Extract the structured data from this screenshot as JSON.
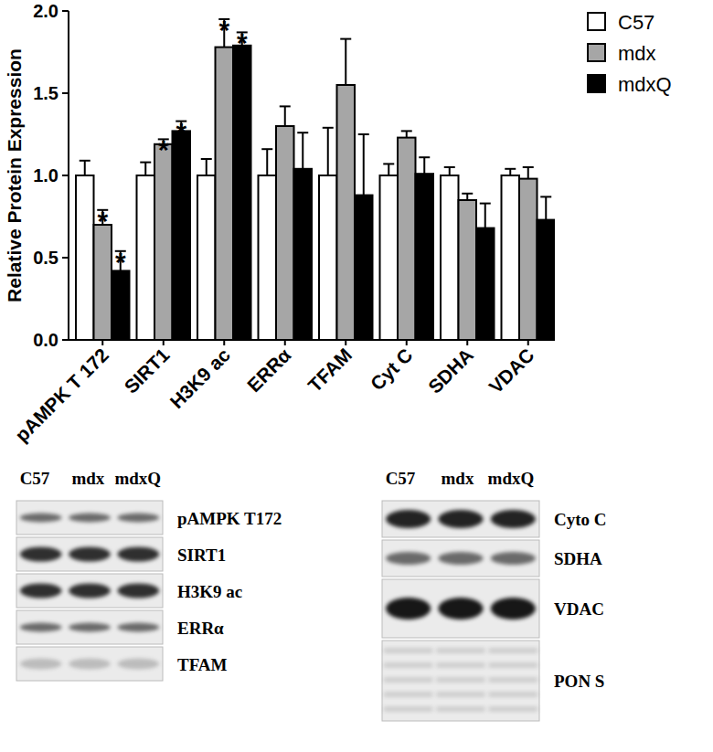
{
  "chart_data": {
    "type": "bar",
    "y_label": "Relative Protein Expression",
    "categories": [
      "pAMPK T 172",
      "SIRT1",
      "H3K9 ac",
      "ERRα",
      "TFAM",
      "Cyt C",
      "SDHA",
      "VDAC"
    ],
    "series": [
      {
        "name": "C57",
        "color": "#ffffff",
        "values": [
          1.0,
          1.0,
          1.0,
          1.0,
          1.0,
          1.0,
          1.0,
          1.0
        ],
        "errors": [
          0.09,
          0.08,
          0.1,
          0.16,
          0.29,
          0.07,
          0.05,
          0.04
        ],
        "significance": [
          null,
          null,
          null,
          null,
          null,
          null,
          null,
          null
        ]
      },
      {
        "name": "mdx",
        "color": "#a6a6a6",
        "values": [
          0.7,
          1.19,
          1.78,
          1.3,
          1.55,
          1.23,
          0.85,
          0.98
        ],
        "errors": [
          0.09,
          0.03,
          0.17,
          0.12,
          0.28,
          0.04,
          0.04,
          0.07
        ],
        "significance": [
          "*",
          "*",
          "*",
          null,
          null,
          null,
          null,
          null
        ]
      },
      {
        "name": "mdxQ",
        "color": "#000000",
        "values": [
          0.42,
          1.27,
          1.79,
          1.04,
          0.88,
          1.01,
          0.68,
          0.73
        ],
        "errors": [
          0.12,
          0.06,
          0.08,
          0.22,
          0.37,
          0.1,
          0.15,
          0.14
        ],
        "significance": [
          "*",
          "*",
          "*",
          null,
          null,
          null,
          null,
          null
        ]
      }
    ],
    "ylim": [
      0,
      2
    ],
    "yticks": [
      {
        "value": 0,
        "label": "0.0"
      },
      {
        "value": 0.5,
        "label": "0.5"
      },
      {
        "value": 1,
        "label": "1.0"
      },
      {
        "value": 1.5,
        "label": "1.5"
      },
      {
        "value": 2,
        "label": "2.0"
      }
    ],
    "legend": "upper right",
    "grid": false
  },
  "blots": [
    {
      "lanes": [
        "C57",
        "mdx",
        "mdxQ"
      ],
      "rows": [
        "pAMPK T172",
        "SIRT1",
        "H3K9 ac",
        "ERRα",
        "TFAM"
      ]
    },
    {
      "lanes": [
        "C57",
        "mdx",
        "mdxQ"
      ],
      "rows": [
        "Cyto C",
        "SDHA",
        "VDAC",
        "PON S"
      ]
    }
  ]
}
